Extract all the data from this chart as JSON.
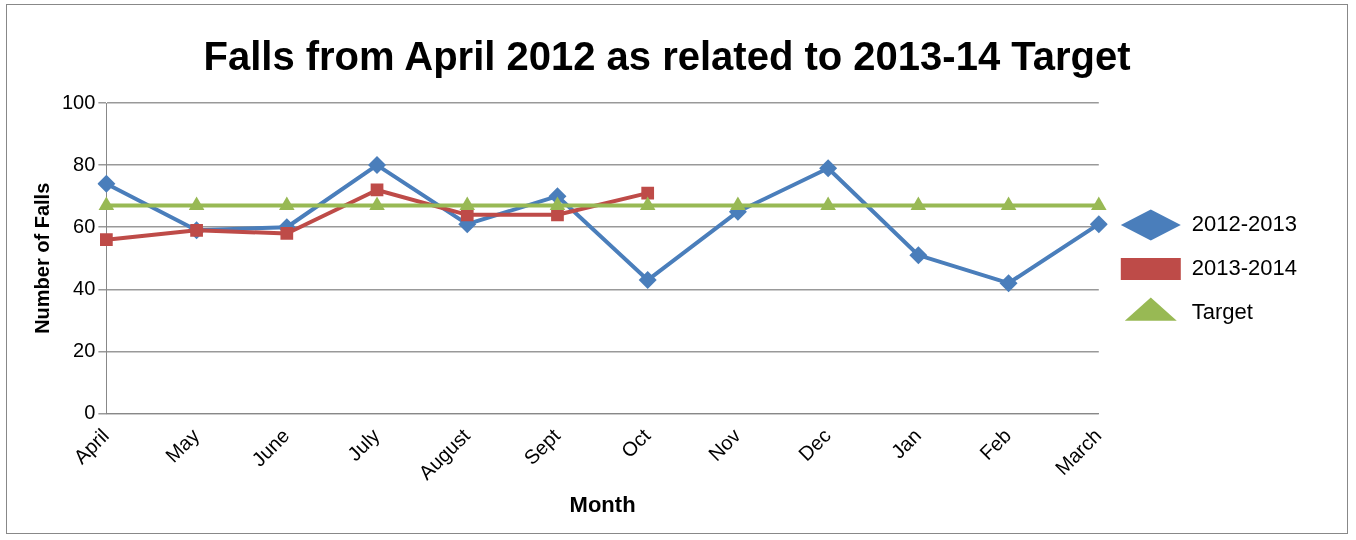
{
  "chart_data": {
    "type": "line",
    "title": "Falls from April 2012 as related to 2013-14 Target",
    "xlabel": "Month",
    "ylabel": "Number of Falls",
    "categories": [
      "April",
      "May",
      "June",
      "July",
      "August",
      "Sept",
      "Oct",
      "Nov",
      "Dec",
      "Jan",
      "Feb",
      "March"
    ],
    "series": [
      {
        "name": "2012-2013",
        "color": "#4a7ebb",
        "marker": "diamond",
        "values": [
          74,
          59,
          60,
          80,
          61,
          70,
          43,
          65,
          79,
          51,
          42,
          61
        ]
      },
      {
        "name": "2013-2014",
        "color": "#be4b48",
        "marker": "square",
        "values": [
          56,
          59,
          58,
          72,
          64,
          64,
          71,
          null,
          null,
          null,
          null,
          null
        ]
      },
      {
        "name": "Target",
        "color": "#98b954",
        "marker": "triangle",
        "values": [
          67,
          67,
          67,
          67,
          67,
          67,
          67,
          67,
          67,
          67,
          67,
          67
        ]
      }
    ],
    "ylim": [
      0,
      100
    ],
    "yticks": [
      0,
      20,
      40,
      60,
      80,
      100
    ],
    "grid": "y",
    "legend": "right"
  }
}
